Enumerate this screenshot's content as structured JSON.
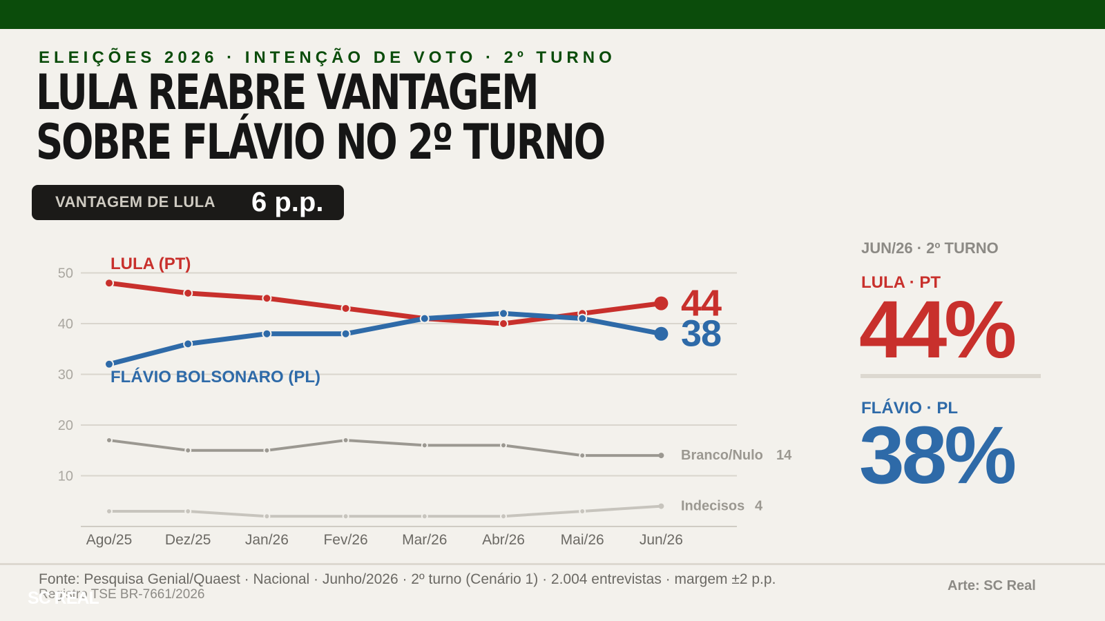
{
  "header": {
    "kicker": "ELEIÇÕES 2026  ·  INTENÇÃO DE VOTO · 2º TURNO",
    "title_line1": "LULA REABRE VANTAGEM",
    "title_line2": "SOBRE FLÁVIO NO 2º TURNO"
  },
  "badge": {
    "label": "VANTAGEM DE LULA",
    "value": "6 p.p."
  },
  "chart_data": {
    "type": "line",
    "title": "",
    "xlabel": "",
    "ylabel": "",
    "ylim": [
      0,
      50
    ],
    "yticks": [
      10,
      20,
      30,
      40,
      50
    ],
    "grid": true,
    "categories": [
      "Ago/25",
      "Dez/25",
      "Jan/26",
      "Fev/26",
      "Mar/26",
      "Abr/26",
      "Mai/26",
      "Jun/26"
    ],
    "series": [
      {
        "name": "LULA (PT)",
        "color": "#c8302c",
        "values": [
          48,
          46,
          45,
          43,
          41,
          40,
          42,
          44
        ],
        "end_label": "44"
      },
      {
        "name": "FLÁVIO BOLSONARO (PL)",
        "color": "#2e6aa8",
        "values": [
          32,
          36,
          38,
          38,
          41,
          42,
          41,
          38
        ],
        "end_label": "38"
      },
      {
        "name": "Branco/Nulo",
        "color": "#9b9891",
        "values": [
          17,
          15,
          15,
          17,
          16,
          16,
          14,
          14
        ],
        "end_label": "14"
      },
      {
        "name": "Indecisos",
        "color": "#c7c4bd",
        "values": [
          3,
          3,
          2,
          2,
          2,
          2,
          3,
          4
        ],
        "end_label": "4"
      }
    ]
  },
  "sidebar": {
    "period": "JUN/26  ·  2º TURNO",
    "lula_label": "LULA · PT",
    "lula_value": "44%",
    "flavio_label": "FLÁVIO · PL",
    "flavio_value": "38%"
  },
  "footer": {
    "source": "Fonte: Pesquisa Genial/Quaest · Nacional · Junho/2026 · 2º turno (Cenário 1) · 2.004 entrevistas · margem ±2 p.p.",
    "registry": "Registro TSE BR-7661/2026",
    "logo": "SC REAL",
    "credit": "Arte: SC Real"
  },
  "colors": {
    "topbar": "#0b4c0b",
    "lula": "#c8302c",
    "flavio": "#2e6aa8",
    "background": "#f3f1ec"
  }
}
